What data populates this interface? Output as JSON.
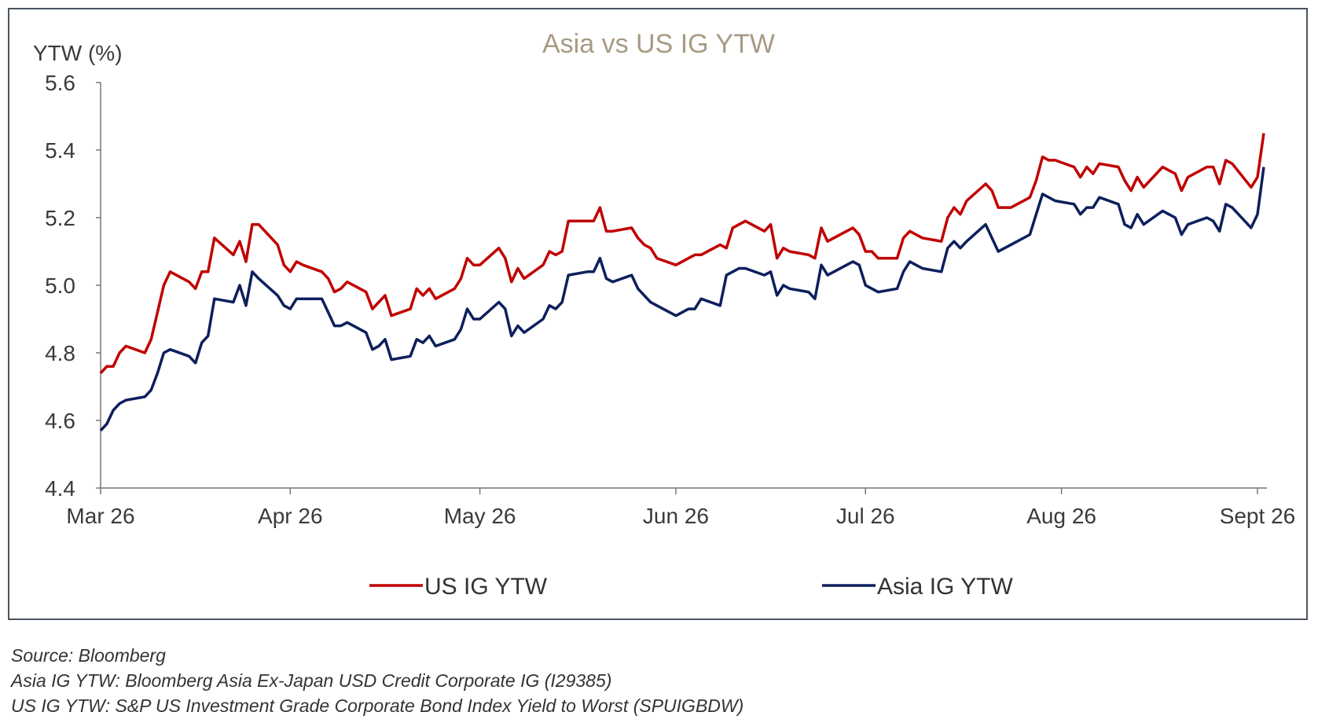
{
  "chart_data": {
    "type": "line",
    "title": "Asia vs US IG YTW",
    "title_color": "#a89a84",
    "ylabel": "YTW (%)",
    "xlabel": "",
    "ylim": [
      4.4,
      5.6
    ],
    "yticks": [
      "4.4",
      "4.6",
      "4.8",
      "5.0",
      "5.2",
      "5.4",
      "5.6"
    ],
    "x_range": [
      "2026-03-02",
      "2026-09-02"
    ],
    "xticks": [
      {
        "date": "2026-03-02",
        "label": "Mar 26"
      },
      {
        "date": "2026-04-01",
        "label": "Apr 26"
      },
      {
        "date": "2026-05-01",
        "label": "May 26"
      },
      {
        "date": "2026-06-01",
        "label": "Jun 26"
      },
      {
        "date": "2026-07-01",
        "label": "Jul 26"
      },
      {
        "date": "2026-08-01",
        "label": "Aug 26"
      },
      {
        "date": "2026-09-01",
        "label": "Sept 26"
      }
    ],
    "legend_position": "bottom",
    "grid": false,
    "series": [
      {
        "name": "US IG YTW",
        "color": "#c00000",
        "points": [
          [
            "2026-03-02",
            4.74
          ],
          [
            "2026-03-03",
            4.76
          ],
          [
            "2026-03-04",
            4.76
          ],
          [
            "2026-03-05",
            4.8
          ],
          [
            "2026-03-06",
            4.82
          ],
          [
            "2026-03-09",
            4.8
          ],
          [
            "2026-03-10",
            4.84
          ],
          [
            "2026-03-11",
            4.92
          ],
          [
            "2026-03-12",
            5.0
          ],
          [
            "2026-03-13",
            5.04
          ],
          [
            "2026-03-16",
            5.01
          ],
          [
            "2026-03-17",
            4.99
          ],
          [
            "2026-03-18",
            5.04
          ],
          [
            "2026-03-19",
            5.04
          ],
          [
            "2026-03-20",
            5.14
          ],
          [
            "2026-03-23",
            5.09
          ],
          [
            "2026-03-24",
            5.13
          ],
          [
            "2026-03-25",
            5.07
          ],
          [
            "2026-03-26",
            5.18
          ],
          [
            "2026-03-27",
            5.18
          ],
          [
            "2026-03-30",
            5.12
          ],
          [
            "2026-03-31",
            5.06
          ],
          [
            "2026-04-01",
            5.04
          ],
          [
            "2026-04-02",
            5.07
          ],
          [
            "2026-04-03",
            5.06
          ],
          [
            "2026-04-06",
            5.04
          ],
          [
            "2026-04-07",
            5.02
          ],
          [
            "2026-04-08",
            4.98
          ],
          [
            "2026-04-09",
            4.99
          ],
          [
            "2026-04-10",
            5.01
          ],
          [
            "2026-04-13",
            4.98
          ],
          [
            "2026-04-14",
            4.93
          ],
          [
            "2026-04-15",
            4.95
          ],
          [
            "2026-04-16",
            4.97
          ],
          [
            "2026-04-17",
            4.91
          ],
          [
            "2026-04-20",
            4.93
          ],
          [
            "2026-04-21",
            4.99
          ],
          [
            "2026-04-22",
            4.97
          ],
          [
            "2026-04-23",
            4.99
          ],
          [
            "2026-04-24",
            4.96
          ],
          [
            "2026-04-27",
            4.99
          ],
          [
            "2026-04-28",
            5.02
          ],
          [
            "2026-04-29",
            5.08
          ],
          [
            "2026-04-30",
            5.06
          ],
          [
            "2026-05-01",
            5.06
          ],
          [
            "2026-05-04",
            5.11
          ],
          [
            "2026-05-05",
            5.08
          ],
          [
            "2026-05-06",
            5.01
          ],
          [
            "2026-05-07",
            5.05
          ],
          [
            "2026-05-08",
            5.02
          ],
          [
            "2026-05-11",
            5.06
          ],
          [
            "2026-05-12",
            5.1
          ],
          [
            "2026-05-13",
            5.09
          ],
          [
            "2026-05-14",
            5.1
          ],
          [
            "2026-05-15",
            5.19
          ],
          [
            "2026-05-18",
            5.19
          ],
          [
            "2026-05-19",
            5.19
          ],
          [
            "2026-05-20",
            5.23
          ],
          [
            "2026-05-21",
            5.16
          ],
          [
            "2026-05-22",
            5.16
          ],
          [
            "2026-05-25",
            5.17
          ],
          [
            "2026-05-26",
            5.14
          ],
          [
            "2026-05-27",
            5.12
          ],
          [
            "2026-05-28",
            5.11
          ],
          [
            "2026-05-29",
            5.08
          ],
          [
            "2026-06-01",
            5.06
          ],
          [
            "2026-06-02",
            5.07
          ],
          [
            "2026-06-03",
            5.08
          ],
          [
            "2026-06-04",
            5.09
          ],
          [
            "2026-06-05",
            5.09
          ],
          [
            "2026-06-08",
            5.12
          ],
          [
            "2026-06-09",
            5.11
          ],
          [
            "2026-06-10",
            5.17
          ],
          [
            "2026-06-11",
            5.18
          ],
          [
            "2026-06-12",
            5.19
          ],
          [
            "2026-06-15",
            5.16
          ],
          [
            "2026-06-16",
            5.18
          ],
          [
            "2026-06-17",
            5.08
          ],
          [
            "2026-06-18",
            5.11
          ],
          [
            "2026-06-19",
            5.1
          ],
          [
            "2026-06-22",
            5.09
          ],
          [
            "2026-06-23",
            5.08
          ],
          [
            "2026-06-24",
            5.17
          ],
          [
            "2026-06-25",
            5.13
          ],
          [
            "2026-06-26",
            5.14
          ],
          [
            "2026-06-29",
            5.17
          ],
          [
            "2026-06-30",
            5.15
          ],
          [
            "2026-07-01",
            5.1
          ],
          [
            "2026-07-02",
            5.1
          ],
          [
            "2026-07-03",
            5.08
          ],
          [
            "2026-07-06",
            5.08
          ],
          [
            "2026-07-07",
            5.14
          ],
          [
            "2026-07-08",
            5.16
          ],
          [
            "2026-07-09",
            5.15
          ],
          [
            "2026-07-10",
            5.14
          ],
          [
            "2026-07-13",
            5.13
          ],
          [
            "2026-07-14",
            5.2
          ],
          [
            "2026-07-15",
            5.23
          ],
          [
            "2026-07-16",
            5.21
          ],
          [
            "2026-07-17",
            5.25
          ],
          [
            "2026-07-20",
            5.3
          ],
          [
            "2026-07-21",
            5.28
          ],
          [
            "2026-07-22",
            5.23
          ],
          [
            "2026-07-23",
            5.23
          ],
          [
            "2026-07-24",
            5.23
          ],
          [
            "2026-07-27",
            5.26
          ],
          [
            "2026-07-28",
            5.31
          ],
          [
            "2026-07-29",
            5.38
          ],
          [
            "2026-07-30",
            5.37
          ],
          [
            "2026-07-31",
            5.37
          ],
          [
            "2026-08-03",
            5.35
          ],
          [
            "2026-08-04",
            5.32
          ],
          [
            "2026-08-05",
            5.35
          ],
          [
            "2026-08-06",
            5.33
          ],
          [
            "2026-08-07",
            5.36
          ],
          [
            "2026-08-10",
            5.35
          ],
          [
            "2026-08-11",
            5.31
          ],
          [
            "2026-08-12",
            5.28
          ],
          [
            "2026-08-13",
            5.32
          ],
          [
            "2026-08-14",
            5.29
          ],
          [
            "2026-08-17",
            5.35
          ],
          [
            "2026-08-18",
            5.34
          ],
          [
            "2026-08-19",
            5.33
          ],
          [
            "2026-08-20",
            5.28
          ],
          [
            "2026-08-21",
            5.32
          ],
          [
            "2026-08-24",
            5.35
          ],
          [
            "2026-08-25",
            5.35
          ],
          [
            "2026-08-26",
            5.3
          ],
          [
            "2026-08-27",
            5.37
          ],
          [
            "2026-08-28",
            5.36
          ],
          [
            "2026-08-31",
            5.29
          ],
          [
            "2026-09-01",
            5.32
          ],
          [
            "2026-09-02",
            5.45
          ]
        ]
      },
      {
        "name": "Asia IG YTW",
        "color": "#0d1f5c",
        "points": [
          [
            "2026-03-02",
            4.57
          ],
          [
            "2026-03-03",
            4.59
          ],
          [
            "2026-03-04",
            4.63
          ],
          [
            "2026-03-05",
            4.65
          ],
          [
            "2026-03-06",
            4.66
          ],
          [
            "2026-03-09",
            4.67
          ],
          [
            "2026-03-10",
            4.69
          ],
          [
            "2026-03-11",
            4.74
          ],
          [
            "2026-03-12",
            4.8
          ],
          [
            "2026-03-13",
            4.81
          ],
          [
            "2026-03-16",
            4.79
          ],
          [
            "2026-03-17",
            4.77
          ],
          [
            "2026-03-18",
            4.83
          ],
          [
            "2026-03-19",
            4.85
          ],
          [
            "2026-03-20",
            4.96
          ],
          [
            "2026-03-23",
            4.95
          ],
          [
            "2026-03-24",
            5.0
          ],
          [
            "2026-03-25",
            4.94
          ],
          [
            "2026-03-26",
            5.04
          ],
          [
            "2026-03-27",
            5.02
          ],
          [
            "2026-03-30",
            4.97
          ],
          [
            "2026-03-31",
            4.94
          ],
          [
            "2026-04-01",
            4.93
          ],
          [
            "2026-04-02",
            4.96
          ],
          [
            "2026-04-03",
            4.96
          ],
          [
            "2026-04-06",
            4.96
          ],
          [
            "2026-04-07",
            4.92
          ],
          [
            "2026-04-08",
            4.88
          ],
          [
            "2026-04-09",
            4.88
          ],
          [
            "2026-04-10",
            4.89
          ],
          [
            "2026-04-13",
            4.86
          ],
          [
            "2026-04-14",
            4.81
          ],
          [
            "2026-04-15",
            4.82
          ],
          [
            "2026-04-16",
            4.84
          ],
          [
            "2026-04-17",
            4.78
          ],
          [
            "2026-04-20",
            4.79
          ],
          [
            "2026-04-21",
            4.84
          ],
          [
            "2026-04-22",
            4.83
          ],
          [
            "2026-04-23",
            4.85
          ],
          [
            "2026-04-24",
            4.82
          ],
          [
            "2026-04-27",
            4.84
          ],
          [
            "2026-04-28",
            4.87
          ],
          [
            "2026-04-29",
            4.93
          ],
          [
            "2026-04-30",
            4.9
          ],
          [
            "2026-05-01",
            4.9
          ],
          [
            "2026-05-04",
            4.95
          ],
          [
            "2026-05-05",
            4.93
          ],
          [
            "2026-05-06",
            4.85
          ],
          [
            "2026-05-07",
            4.88
          ],
          [
            "2026-05-08",
            4.86
          ],
          [
            "2026-05-11",
            4.9
          ],
          [
            "2026-05-12",
            4.94
          ],
          [
            "2026-05-13",
            4.93
          ],
          [
            "2026-05-14",
            4.95
          ],
          [
            "2026-05-15",
            5.03
          ],
          [
            "2026-05-18",
            5.04
          ],
          [
            "2026-05-19",
            5.04
          ],
          [
            "2026-05-20",
            5.08
          ],
          [
            "2026-05-21",
            5.02
          ],
          [
            "2026-05-22",
            5.01
          ],
          [
            "2026-05-25",
            5.03
          ],
          [
            "2026-05-26",
            4.99
          ],
          [
            "2026-05-27",
            4.97
          ],
          [
            "2026-05-28",
            4.95
          ],
          [
            "2026-05-29",
            4.94
          ],
          [
            "2026-06-01",
            4.91
          ],
          [
            "2026-06-02",
            4.92
          ],
          [
            "2026-06-03",
            4.93
          ],
          [
            "2026-06-04",
            4.93
          ],
          [
            "2026-06-05",
            4.96
          ],
          [
            "2026-06-08",
            4.94
          ],
          [
            "2026-06-09",
            5.03
          ],
          [
            "2026-06-10",
            5.04
          ],
          [
            "2026-06-11",
            5.05
          ],
          [
            "2026-06-12",
            5.05
          ],
          [
            "2026-06-15",
            5.03
          ],
          [
            "2026-06-16",
            5.04
          ],
          [
            "2026-06-17",
            4.97
          ],
          [
            "2026-06-18",
            5.0
          ],
          [
            "2026-06-19",
            4.99
          ],
          [
            "2026-06-22",
            4.98
          ],
          [
            "2026-06-23",
            4.96
          ],
          [
            "2026-06-24",
            5.06
          ],
          [
            "2026-06-25",
            5.03
          ],
          [
            "2026-06-26",
            5.04
          ],
          [
            "2026-06-29",
            5.07
          ],
          [
            "2026-06-30",
            5.06
          ],
          [
            "2026-07-01",
            5.0
          ],
          [
            "2026-07-02",
            4.99
          ],
          [
            "2026-07-03",
            4.98
          ],
          [
            "2026-07-06",
            4.99
          ],
          [
            "2026-07-07",
            5.04
          ],
          [
            "2026-07-08",
            5.07
          ],
          [
            "2026-07-09",
            5.06
          ],
          [
            "2026-07-10",
            5.05
          ],
          [
            "2026-07-13",
            5.04
          ],
          [
            "2026-07-14",
            5.11
          ],
          [
            "2026-07-15",
            5.13
          ],
          [
            "2026-07-16",
            5.11
          ],
          [
            "2026-07-17",
            5.13
          ],
          [
            "2026-07-20",
            5.18
          ],
          [
            "2026-07-21",
            5.14
          ],
          [
            "2026-07-22",
            5.1
          ],
          [
            "2026-07-23",
            5.11
          ],
          [
            "2026-07-24",
            5.12
          ],
          [
            "2026-07-27",
            5.15
          ],
          [
            "2026-07-28",
            5.21
          ],
          [
            "2026-07-29",
            5.27
          ],
          [
            "2026-07-30",
            5.26
          ],
          [
            "2026-07-31",
            5.25
          ],
          [
            "2026-08-03",
            5.24
          ],
          [
            "2026-08-04",
            5.21
          ],
          [
            "2026-08-05",
            5.23
          ],
          [
            "2026-08-06",
            5.23
          ],
          [
            "2026-08-07",
            5.26
          ],
          [
            "2026-08-10",
            5.24
          ],
          [
            "2026-08-11",
            5.18
          ],
          [
            "2026-08-12",
            5.17
          ],
          [
            "2026-08-13",
            5.21
          ],
          [
            "2026-08-14",
            5.18
          ],
          [
            "2026-08-17",
            5.22
          ],
          [
            "2026-08-18",
            5.21
          ],
          [
            "2026-08-19",
            5.2
          ],
          [
            "2026-08-20",
            5.15
          ],
          [
            "2026-08-21",
            5.18
          ],
          [
            "2026-08-24",
            5.2
          ],
          [
            "2026-08-25",
            5.19
          ],
          [
            "2026-08-26",
            5.16
          ],
          [
            "2026-08-27",
            5.24
          ],
          [
            "2026-08-28",
            5.23
          ],
          [
            "2026-08-31",
            5.17
          ],
          [
            "2026-09-01",
            5.21
          ],
          [
            "2026-09-02",
            5.35
          ]
        ]
      }
    ]
  },
  "notes": {
    "source": "Source: Bloomberg",
    "asia_def": "Asia IG YTW: Bloomberg Asia Ex-Japan USD Credit Corporate IG (I29385)",
    "us_def": "US IG YTW: S&P US Investment Grade Corporate Bond Index Yield to Worst (SPUIGBDW)"
  }
}
